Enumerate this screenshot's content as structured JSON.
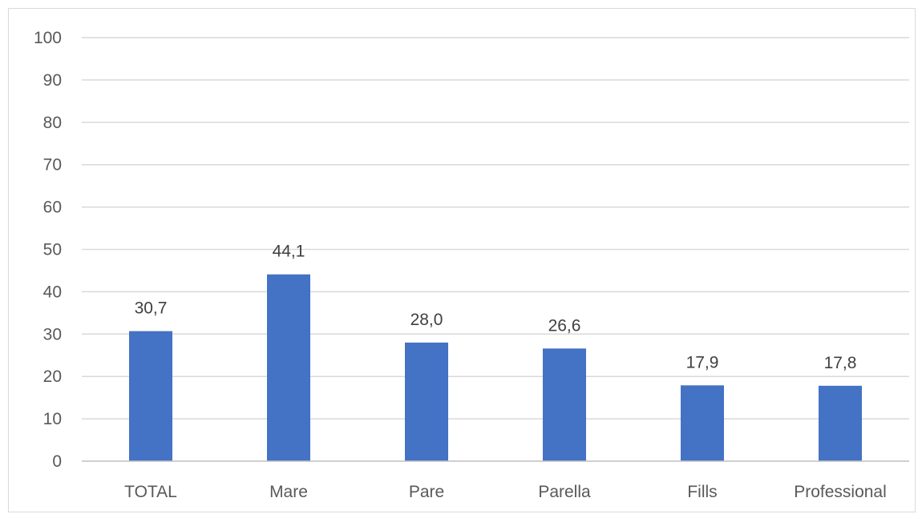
{
  "chart_data": {
    "type": "bar",
    "categories": [
      "TOTAL",
      "Mare",
      "Pare",
      "Parella",
      "Fills",
      "Professional"
    ],
    "series": [
      {
        "values": [
          30.7,
          44.1,
          28.0,
          26.6,
          17.9,
          17.8
        ],
        "labels": [
          "30,7",
          "44,1",
          "28,0",
          "26,6",
          "17,9",
          "17,8"
        ],
        "color": "#4472c4"
      }
    ],
    "title": "",
    "xlabel": "",
    "ylabel": "",
    "ylim": [
      0,
      100
    ],
    "yticks": [
      0,
      10,
      20,
      30,
      40,
      50,
      60,
      70,
      80,
      90,
      100
    ],
    "grid": true,
    "legend": "none"
  }
}
